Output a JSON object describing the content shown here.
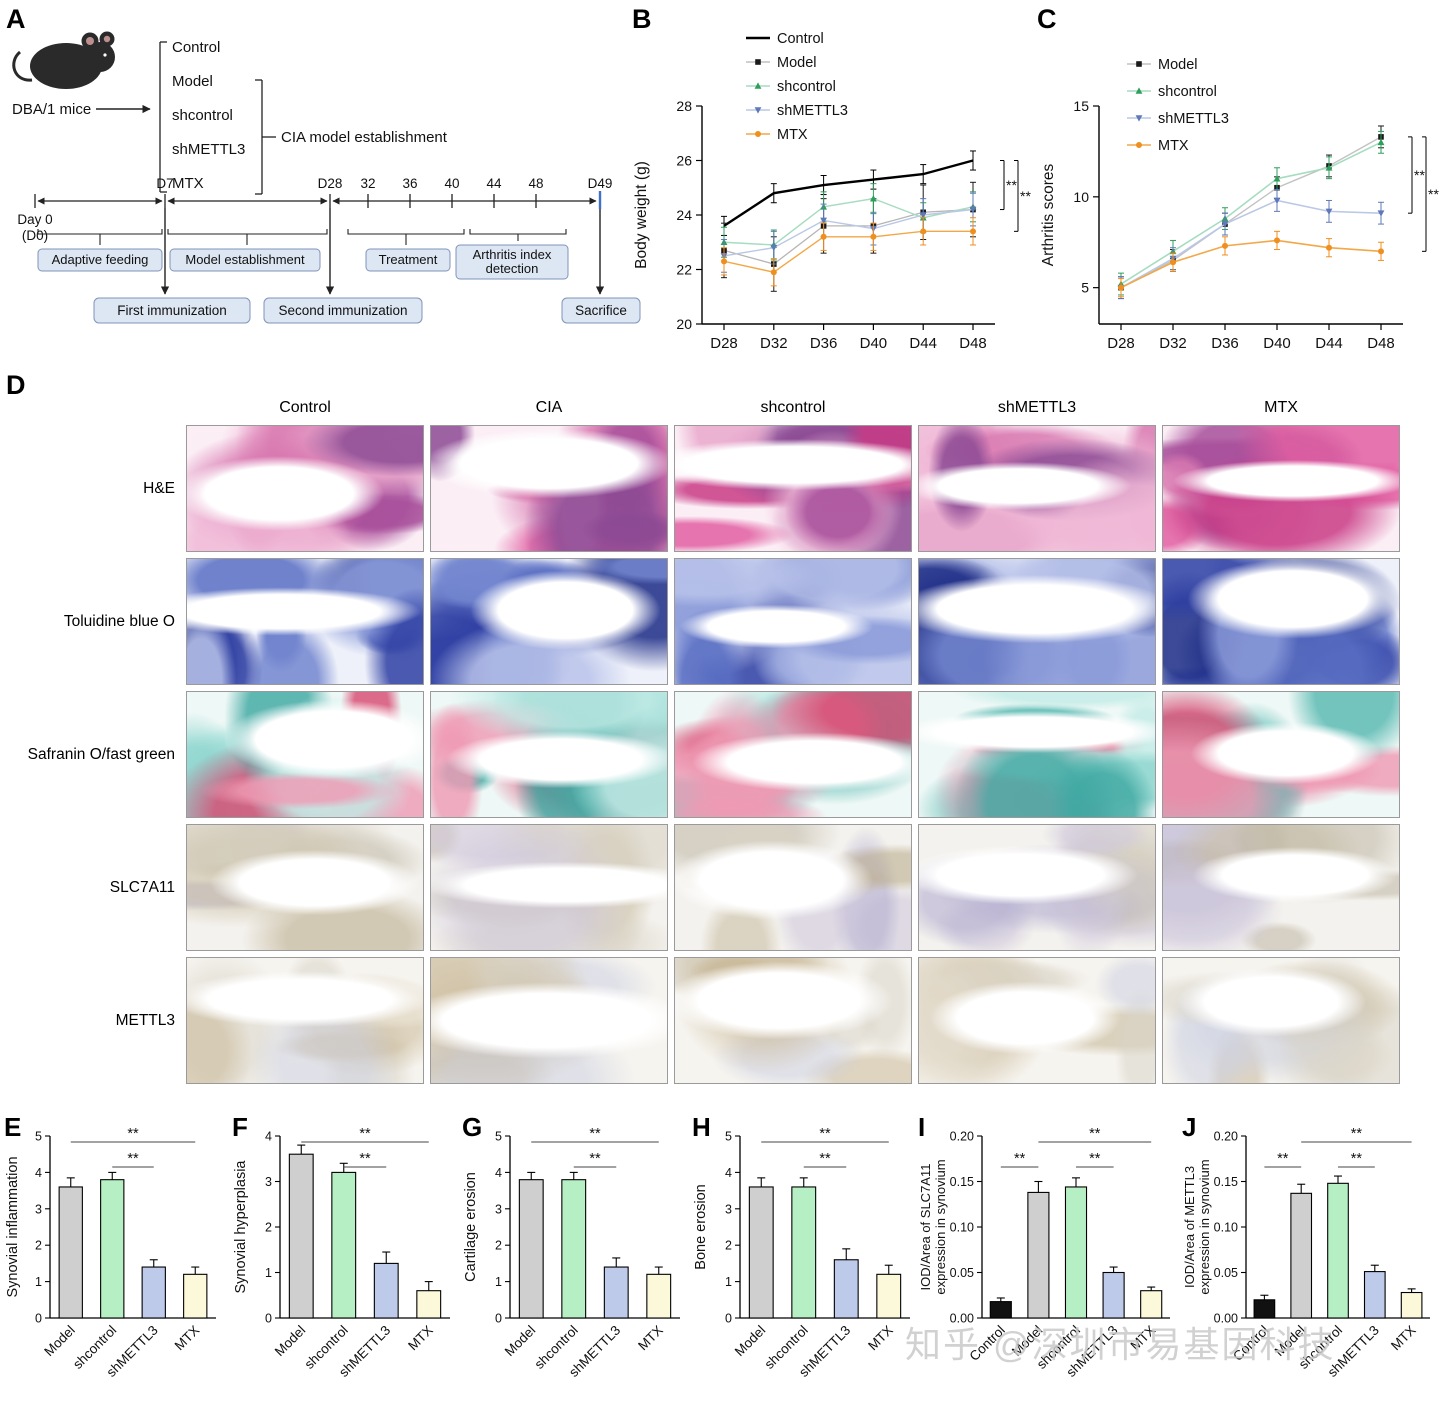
{
  "letters": [
    "A",
    "B",
    "C",
    "D",
    "E",
    "F",
    "G",
    "H",
    "I",
    "J"
  ],
  "panel_a": {
    "mouse_caption": "DBA/1 mice",
    "groups": [
      "Control",
      "Model",
      "shcontrol",
      "shMETTL3",
      "MTX"
    ],
    "cia_note": "CIA model establishment",
    "timeline": {
      "day0_line1": "Day 0",
      "day0_line2": "(D0)",
      "ticks": [
        "D7",
        "D28",
        "32",
        "36",
        "40",
        "44",
        "48",
        "D49"
      ]
    },
    "phases": [
      "Adaptive feeding",
      "Model establishment",
      "Treatment"
    ],
    "arthritis_line1": "Arthritis index",
    "arthritis_line2": "detection",
    "events": [
      "First immunization",
      "Second immunization",
      "Sacrifice"
    ]
  },
  "histology": {
    "col_headers": [
      "Control",
      "CIA",
      "shcontrol",
      "shMETTL3",
      "MTX"
    ],
    "rows": [
      {
        "label": "H&E",
        "base": "#fbeef5",
        "alpha": "d9",
        "palette": [
          "#e25fa2",
          "#c93b86",
          "#d878b0",
          "#a84f9b",
          "#f0b8d6",
          "#8c4a94",
          "#e9a8cc"
        ]
      },
      {
        "label": "Toluidine blue O",
        "base": "#eef1fa",
        "alpha": "d9",
        "palette": [
          "#2e3fa3",
          "#5a6fc4",
          "#8b9bd9",
          "#1d2c86",
          "#b9c3ea",
          "#7386cf"
        ]
      },
      {
        "label": "Safranin O/fast green",
        "base": "#eef8f6",
        "alpha": "d0",
        "palette": [
          "#63c4bc",
          "#3fa8a2",
          "#8fd6cf",
          "#d84a72",
          "#ef9ab4",
          "#c4ece7",
          "#56b8b0"
        ]
      },
      {
        "label": "SLC7A11",
        "base": "#f4f2ee",
        "alpha": "99",
        "palette": [
          "#cfc8dc",
          "#bcae8e",
          "#d8d2c4",
          "#c2bba9",
          "#b4aed0",
          "#cabfa4"
        ]
      },
      {
        "label": "METTL3",
        "base": "#f6f4ef",
        "alpha": "88",
        "palette": [
          "#ded6c6",
          "#c9b795",
          "#cdd1e2",
          "#d9d4c8",
          "#efe9dc",
          "#c2b391"
        ]
      }
    ]
  },
  "chart_data": [
    {
      "id": "B",
      "type": "line",
      "title": "",
      "xlabel": "",
      "ylabel": "Body weight (g)",
      "categories": [
        "D28",
        "D32",
        "D36",
        "D40",
        "D44",
        "D48"
      ],
      "ylim": [
        20,
        28
      ],
      "yticks": [
        20,
        22,
        24,
        26,
        28
      ],
      "legend_position": "top-left",
      "series": [
        {
          "name": "Control",
          "line": "#000000",
          "marker_color": "#000000",
          "marker": "none",
          "lw": 2.4,
          "err": 0.35,
          "values": [
            23.6,
            24.8,
            25.1,
            25.3,
            25.5,
            26.0
          ]
        },
        {
          "name": "Model",
          "line": "#b5b5b5",
          "marker_color": "#1a1a1a",
          "marker": "square",
          "lw": 1.3,
          "err": 1.0,
          "values": [
            22.7,
            22.2,
            23.6,
            23.6,
            24.1,
            24.2
          ]
        },
        {
          "name": "shcontrol",
          "line": "#a6dcc0",
          "marker_color": "#2f9e5b",
          "marker": "triangle",
          "lw": 1.4,
          "err": 0.55,
          "values": [
            23.0,
            22.9,
            24.3,
            24.6,
            23.9,
            24.3
          ]
        },
        {
          "name": "shMETTL3",
          "line": "#bac8e6",
          "marker_color": "#5f79b8",
          "marker": "triangle-down",
          "lw": 1.4,
          "err": 0.6,
          "values": [
            22.5,
            22.8,
            23.8,
            23.5,
            24.0,
            24.2
          ]
        },
        {
          "name": "MTX",
          "line": "#f2a848",
          "marker_color": "#ef8f1f",
          "marker": "circle",
          "lw": 1.4,
          "err": 0.5,
          "values": [
            22.3,
            21.9,
            23.2,
            23.2,
            23.4,
            23.4
          ]
        }
      ],
      "sig": [
        {
          "from": 0,
          "to": 1,
          "label": "**"
        },
        {
          "from": 0,
          "to": 4,
          "label": "**"
        }
      ]
    },
    {
      "id": "C",
      "type": "line",
      "title": "",
      "xlabel": "",
      "ylabel": "Arthritis scores",
      "categories": [
        "D28",
        "D32",
        "D36",
        "D40",
        "D44",
        "D48"
      ],
      "ylim": [
        3,
        15
      ],
      "yticks": [
        5,
        10,
        15
      ],
      "legend_position": "top-left",
      "series": [
        {
          "name": "Model",
          "line": "#c2c2c2",
          "marker_color": "#1a1a1a",
          "marker": "square",
          "lw": 1.4,
          "err": 0.6,
          "values": [
            5.0,
            6.5,
            8.5,
            10.5,
            11.7,
            13.3
          ]
        },
        {
          "name": "shcontrol",
          "line": "#a6dcc0",
          "marker_color": "#2f9e5b",
          "marker": "triangle",
          "lw": 1.6,
          "err": 0.6,
          "values": [
            5.2,
            7.0,
            8.8,
            11.0,
            11.6,
            13.0
          ]
        },
        {
          "name": "shMETTL3",
          "line": "#bac8e6",
          "marker_color": "#5f79b8",
          "marker": "triangle-down",
          "lw": 1.6,
          "err": 0.6,
          "values": [
            5.0,
            6.6,
            8.5,
            9.8,
            9.2,
            9.1
          ]
        },
        {
          "name": "MTX",
          "line": "#f2a848",
          "marker_color": "#ef8f1f",
          "marker": "circle",
          "lw": 1.6,
          "err": 0.5,
          "values": [
            5.0,
            6.4,
            7.3,
            7.6,
            7.2,
            7.0
          ]
        }
      ],
      "sig": [
        {
          "from": 0,
          "to": 2,
          "label": "**"
        },
        {
          "from": 0,
          "to": 3,
          "label": "**"
        }
      ]
    },
    {
      "id": "E",
      "type": "bar",
      "ylabel": "Synovial inflammation",
      "categories": [
        "Model",
        "shcontrol",
        "shMETTL3",
        "MTX"
      ],
      "values": [
        3.6,
        3.8,
        1.4,
        1.2
      ],
      "errors": [
        0.25,
        0.2,
        0.2,
        0.2
      ],
      "colors": [
        "#cfcfcf",
        "#b6efc4",
        "#bdcae9",
        "#fbf9da"
      ],
      "ylim": [
        0,
        5
      ],
      "yticks": [
        0,
        1,
        2,
        3,
        4,
        5
      ],
      "decimals": 0,
      "sig": [
        {
          "from": 0,
          "to": 3,
          "label": "**",
          "row": 0
        },
        {
          "from": 1,
          "to": 2,
          "label": "**",
          "row": 1
        }
      ]
    },
    {
      "id": "F",
      "type": "bar",
      "ylabel": "Synovial hyperplasia",
      "categories": [
        "Model",
        "shcontrol",
        "shMETTL3",
        "MTX"
      ],
      "values": [
        3.6,
        3.2,
        1.2,
        0.6
      ],
      "errors": [
        0.2,
        0.2,
        0.25,
        0.2
      ],
      "colors": [
        "#cfcfcf",
        "#b6efc4",
        "#bdcae9",
        "#fbf9da"
      ],
      "ylim": [
        0,
        4
      ],
      "yticks": [
        0,
        1,
        2,
        3,
        4
      ],
      "decimals": 0,
      "sig": [
        {
          "from": 0,
          "to": 3,
          "label": "**",
          "row": 0
        },
        {
          "from": 1,
          "to": 2,
          "label": "**",
          "row": 1
        }
      ]
    },
    {
      "id": "G",
      "type": "bar",
      "ylabel": "Cartilage erosion",
      "categories": [
        "Model",
        "shcontrol",
        "shMETTL3",
        "MTX"
      ],
      "values": [
        3.8,
        3.8,
        1.4,
        1.2
      ],
      "errors": [
        0.2,
        0.2,
        0.25,
        0.2
      ],
      "colors": [
        "#cfcfcf",
        "#b6efc4",
        "#bdcae9",
        "#fbf9da"
      ],
      "ylim": [
        0,
        5
      ],
      "yticks": [
        0,
        1,
        2,
        3,
        4,
        5
      ],
      "decimals": 0,
      "sig": [
        {
          "from": 0,
          "to": 3,
          "label": "**",
          "row": 0
        },
        {
          "from": 1,
          "to": 2,
          "label": "**",
          "row": 1
        }
      ]
    },
    {
      "id": "H",
      "type": "bar",
      "ylabel": "Bone erosion",
      "categories": [
        "Model",
        "shcontrol",
        "shMETTL3",
        "MTX"
      ],
      "values": [
        3.6,
        3.6,
        1.6,
        1.2
      ],
      "errors": [
        0.25,
        0.25,
        0.3,
        0.25
      ],
      "colors": [
        "#cfcfcf",
        "#b6efc4",
        "#bdcae9",
        "#fbf9da"
      ],
      "ylim": [
        0,
        5
      ],
      "yticks": [
        0,
        1,
        2,
        3,
        4,
        5
      ],
      "decimals": 0,
      "sig": [
        {
          "from": 0,
          "to": 3,
          "label": "**",
          "row": 0
        },
        {
          "from": 1,
          "to": 2,
          "label": "**",
          "row": 1
        }
      ]
    },
    {
      "id": "I",
      "type": "bar",
      "ylabel_lines": [
        "IOD/Area of SLC7A11",
        "expression in synovium"
      ],
      "categories": [
        "Control",
        "Model",
        "shcontrol",
        "shMETTL3",
        "MTX"
      ],
      "values": [
        0.018,
        0.138,
        0.144,
        0.05,
        0.03
      ],
      "errors": [
        0.004,
        0.012,
        0.01,
        0.006,
        0.004
      ],
      "colors": [
        "#111111",
        "#cfcfcf",
        "#b6efc4",
        "#bdcae9",
        "#fbf9da"
      ],
      "ylim": [
        0,
        0.2
      ],
      "yticks": [
        0,
        0.05,
        0.1,
        0.15,
        0.2
      ],
      "decimals": 2,
      "sig": [
        {
          "from": 1,
          "to": 4,
          "label": "**",
          "row": 0
        },
        {
          "from": 2,
          "to": 3,
          "label": "**",
          "row": 1
        },
        {
          "from": 0,
          "to": 1,
          "label": "**",
          "row": 1
        }
      ]
    },
    {
      "id": "J",
      "type": "bar",
      "ylabel_lines": [
        "IOD/Area of METTL3",
        "expression in synovium"
      ],
      "categories": [
        "Control",
        "Model",
        "shcontrol",
        "shMETTL3",
        "MTX"
      ],
      "values": [
        0.02,
        0.137,
        0.148,
        0.051,
        0.028
      ],
      "errors": [
        0.005,
        0.01,
        0.008,
        0.007,
        0.004
      ],
      "colors": [
        "#111111",
        "#cfcfcf",
        "#b6efc4",
        "#bdcae9",
        "#fbf9da"
      ],
      "ylim": [
        0,
        0.2
      ],
      "yticks": [
        0,
        0.05,
        0.1,
        0.15,
        0.2
      ],
      "decimals": 2,
      "sig": [
        {
          "from": 1,
          "to": 4,
          "label": "**",
          "row": 0
        },
        {
          "from": 2,
          "to": 3,
          "label": "**",
          "row": 1
        },
        {
          "from": 0,
          "to": 1,
          "label": "**",
          "row": 1
        }
      ]
    }
  ],
  "watermark": {
    "text": "知乎 @深圳市易基因科技"
  }
}
